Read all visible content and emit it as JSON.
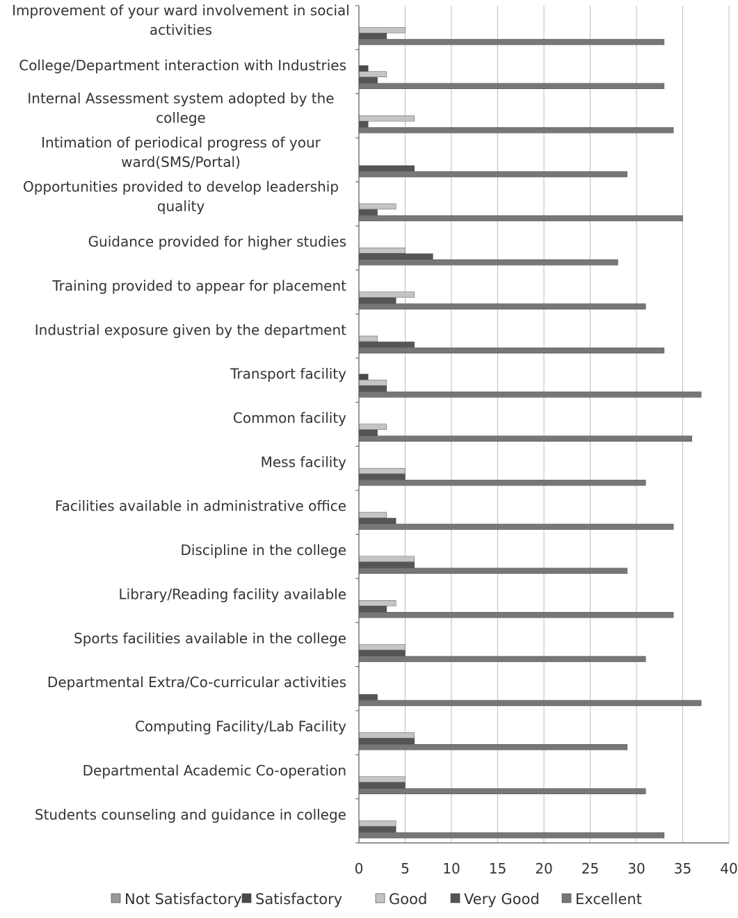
{
  "chart_data": {
    "type": "bar",
    "orientation": "horizontal",
    "title": "",
    "xlabel": "",
    "ylabel": "",
    "xlim": [
      0,
      40
    ],
    "xticks": [
      0,
      5,
      10,
      15,
      20,
      25,
      30,
      35,
      40
    ],
    "grid": true,
    "legend_position": "bottom",
    "categories": [
      "Improvement of your ward involvement in social activities",
      "College/Department interaction with Industries",
      "Internal Assessment system adopted by the college",
      "Intimation of periodical progress of your ward(SMS/Portal)",
      "Opportunities provided to develop leadership quality",
      "Guidance provided for higher studies",
      "Training provided to appear for placement",
      "Industrial exposure given by the department",
      "Transport facility",
      "Common facility",
      "Mess facility",
      "Facilities available in administrative office",
      "Discipline in the college",
      "Library/Reading facility available",
      "Sports facilities available in the college",
      "Departmental Extra/Co-curricular activities",
      "Computing Facility/Lab Facility",
      "Departmental Academic Co-operation",
      "Students counseling and guidance in college"
    ],
    "category_lines": [
      [
        "Improvement of your ward involvement in social",
        "activities"
      ],
      [
        "College/Department interaction with Industries"
      ],
      [
        "Internal Assessment system adopted by the",
        "college"
      ],
      [
        "Intimation of periodical progress of your",
        "ward(SMS/Portal)"
      ],
      [
        "Opportunities provided to develop leadership",
        "quality"
      ],
      [
        "Guidance provided for higher studies"
      ],
      [
        "Training provided to appear for placement"
      ],
      [
        "Industrial exposure given by the department"
      ],
      [
        "Transport facility"
      ],
      [
        "Common facility"
      ],
      [
        "Mess facility"
      ],
      [
        "Facilities available in administrative office"
      ],
      [
        "Discipline in the college"
      ],
      [
        "Library/Reading facility available"
      ],
      [
        "Sports facilities available in the college"
      ],
      [
        "Departmental Extra/Co-curricular activities"
      ],
      [
        "Computing Facility/Lab Facility"
      ],
      [
        "Departmental Academic Co-operation"
      ],
      [
        "Students counseling and guidance in college"
      ]
    ],
    "series": [
      {
        "name": "Not Satisfactory",
        "color": "#9a9a9a",
        "values": [
          0,
          0,
          0,
          0,
          0,
          0,
          0,
          0,
          0,
          0,
          0,
          0,
          0,
          0,
          0,
          0,
          0,
          0,
          0
        ]
      },
      {
        "name": "Satisfactory",
        "color": "#4a4a4a",
        "values": [
          0,
          1,
          0,
          0,
          0,
          0,
          0,
          0,
          1,
          0,
          0,
          0,
          0,
          0,
          0,
          0,
          0,
          0,
          0
        ]
      },
      {
        "name": "Good",
        "color": "#c4c4c4",
        "values": [
          5,
          3,
          6,
          0,
          4,
          5,
          6,
          2,
          3,
          3,
          5,
          3,
          6,
          4,
          5,
          0,
          6,
          5,
          4
        ]
      },
      {
        "name": "Very Good",
        "color": "#555555",
        "values": [
          3,
          2,
          1,
          6,
          2,
          8,
          4,
          6,
          3,
          2,
          5,
          4,
          6,
          3,
          5,
          2,
          6,
          5,
          4
        ]
      },
      {
        "name": "Excellent",
        "color": "#777777",
        "values": [
          33,
          33,
          34,
          29,
          35,
          28,
          31,
          33,
          37,
          36,
          31,
          34,
          29,
          34,
          31,
          37,
          29,
          31,
          33
        ]
      }
    ]
  }
}
